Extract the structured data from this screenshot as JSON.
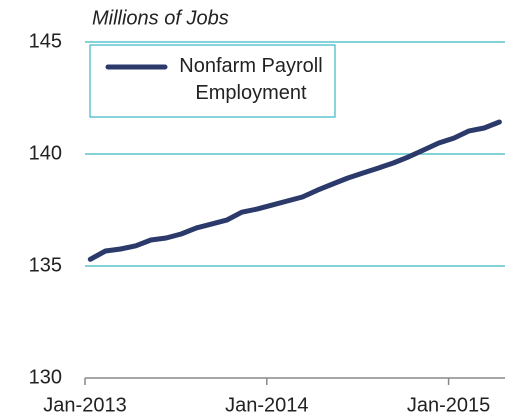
{
  "chart_data": {
    "type": "line",
    "y_label": "Millions of Jobs",
    "categories": [
      "Jan-2013",
      null,
      null,
      null,
      null,
      null,
      null,
      null,
      null,
      null,
      null,
      null,
      "Jan-2014",
      null,
      null,
      null,
      null,
      null,
      null,
      null,
      null,
      null,
      null,
      null,
      "Jan-2015",
      null,
      null,
      null
    ],
    "series": [
      {
        "name": "Nonfarm Payroll Employment",
        "color": "#2b3a6b",
        "values": [
          135.3,
          135.67,
          135.76,
          135.9,
          136.16,
          136.25,
          136.43,
          136.7,
          136.87,
          137.05,
          137.4,
          137.54,
          137.72,
          137.9,
          138.08,
          138.39,
          138.66,
          138.93,
          139.15,
          139.37,
          139.6,
          139.87,
          140.18,
          140.49,
          140.71,
          141.03,
          141.16,
          141.43
        ]
      }
    ],
    "ylim": [
      130,
      145
    ],
    "yticks": [
      130,
      135,
      140,
      145
    ],
    "grid": true
  }
}
